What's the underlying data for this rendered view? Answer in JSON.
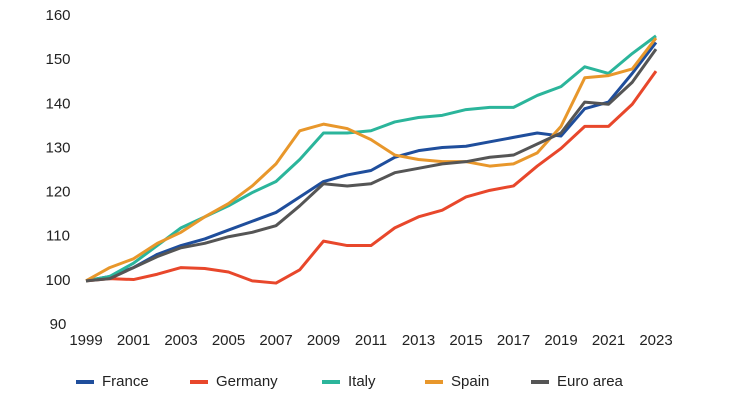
{
  "chart_data": {
    "type": "line",
    "x": [
      1999,
      2000,
      2001,
      2002,
      2003,
      2004,
      2005,
      2006,
      2007,
      2008,
      2009,
      2010,
      2011,
      2012,
      2013,
      2014,
      2015,
      2016,
      2017,
      2018,
      2019,
      2020,
      2021,
      2022,
      2023
    ],
    "series": [
      {
        "name": "France",
        "color": "#1f4e9c",
        "values": [
          100,
          101,
          103,
          106,
          108,
          109.5,
          111.5,
          113.5,
          115.5,
          119,
          122.5,
          124,
          125,
          128,
          129.5,
          130.2,
          130.5,
          131.5,
          132.5,
          133.5,
          132.8,
          139,
          140.5,
          147,
          154
        ]
      },
      {
        "name": "Germany",
        "color": "#e8472b",
        "values": [
          100,
          100.5,
          100.3,
          101.5,
          103,
          102.8,
          102,
          100,
          99.5,
          102.5,
          109,
          108,
          108,
          112,
          114.5,
          116,
          119,
          120.5,
          121.5,
          126,
          130,
          135,
          135,
          140,
          147.5
        ]
      },
      {
        "name": "Italy",
        "color": "#2bb59b",
        "values": [
          100,
          101,
          104,
          108,
          112,
          114.5,
          117,
          120,
          122.5,
          127.5,
          133.5,
          133.5,
          134,
          136,
          137,
          137.5,
          138.8,
          139.3,
          139.3,
          142,
          144,
          148.5,
          147,
          151.5,
          155.5
        ]
      },
      {
        "name": "Spain",
        "color": "#e8972b",
        "values": [
          100,
          103,
          105,
          108.5,
          111,
          114.5,
          117.5,
          121.5,
          126.5,
          134,
          135.5,
          134.5,
          132,
          128.5,
          127.5,
          127,
          127,
          126,
          126.5,
          129,
          135,
          146,
          146.5,
          148,
          155
        ]
      },
      {
        "name": "Euro area",
        "color": "#555555",
        "values": [
          100,
          100.5,
          103,
          105.5,
          107.5,
          108.5,
          110,
          111,
          112.5,
          117,
          122,
          121.5,
          122,
          124.5,
          125.5,
          126.5,
          127,
          128,
          128.5,
          131,
          133.5,
          140.5,
          140,
          145,
          152.5
        ]
      }
    ],
    "xlim": [
      1999,
      2023
    ],
    "xticks": [
      1999,
      2001,
      2003,
      2005,
      2007,
      2009,
      2011,
      2013,
      2015,
      2017,
      2019,
      2021,
      2023
    ],
    "ylim": [
      90,
      160
    ],
    "yticks": [
      90,
      100,
      110,
      120,
      130,
      140,
      150,
      160
    ],
    "legend": "bottom"
  }
}
